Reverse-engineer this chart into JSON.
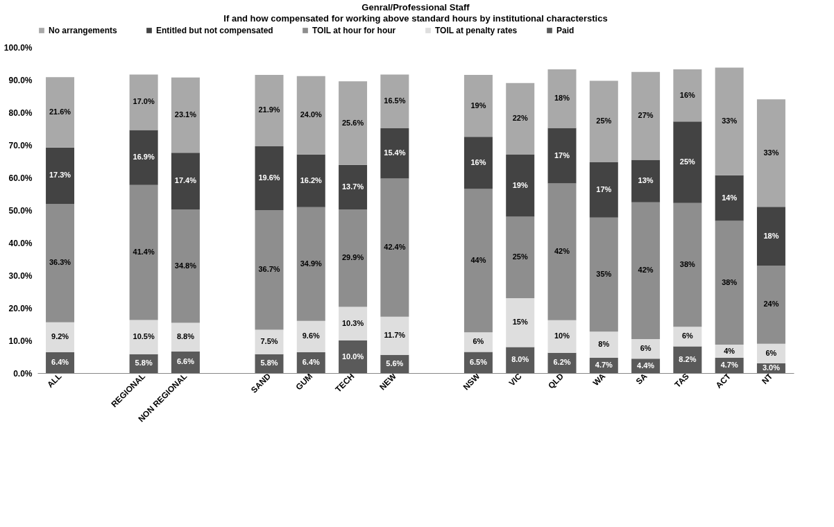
{
  "chart_data": {
    "type": "bar",
    "stacked": true,
    "title": "Genral/Professional Staff",
    "subtitle": "If and how compensated for working above standard hours by institutional characterstics",
    "categories": [
      "ALL",
      null,
      "REGIONAL",
      "NON REGIONAL",
      null,
      "SAND",
      "GUM",
      "TECH",
      "NEW",
      null,
      "NSW",
      "VIC",
      "QLD",
      "WA",
      "SA",
      "TAS",
      "ACT",
      "NT"
    ],
    "series": [
      {
        "name": "Paid",
        "color": "#5a5a5a",
        "values": [
          6.4,
          null,
          5.8,
          6.6,
          null,
          5.8,
          6.4,
          10.0,
          5.6,
          null,
          6.5,
          8.0,
          6.2,
          4.7,
          4.4,
          8.2,
          4.7,
          3.0
        ],
        "value_labels": [
          "6.4%",
          null,
          "5.8%",
          "6.6%",
          null,
          "5.8%",
          "6.4%",
          "10.0%",
          "5.6%",
          null,
          "6.5%",
          "8.0%",
          "6.2%",
          "4.7%",
          "4.4%",
          "8.2%",
          "4.7%",
          "3.0%"
        ]
      },
      {
        "name": "TOIL at penalty rates",
        "color": "#dedede",
        "values": [
          9.2,
          null,
          10.5,
          8.8,
          null,
          7.5,
          9.6,
          10.3,
          11.7,
          null,
          6,
          15,
          10,
          8,
          6,
          6,
          4,
          6
        ],
        "value_labels": [
          "9.2%",
          null,
          "10.5%",
          "8.8%",
          null,
          "7.5%",
          "9.6%",
          "10.3%",
          "11.7%",
          null,
          "6%",
          "15%",
          "10%",
          "8%",
          "6%",
          "6%",
          "4%",
          "6%"
        ]
      },
      {
        "name": "TOIL at hour for hour",
        "color": "#8e8e8e",
        "values": [
          36.3,
          null,
          41.4,
          34.8,
          null,
          36.7,
          34.9,
          29.9,
          42.4,
          null,
          44,
          25,
          42,
          35,
          42,
          38,
          38,
          24
        ],
        "value_labels": [
          "36.3%",
          null,
          "41.4%",
          "34.8%",
          null,
          "36.7%",
          "34.9%",
          "29.9%",
          "42.4%",
          null,
          "44%",
          "25%",
          "42%",
          "35%",
          "42%",
          "38%",
          "38%",
          "24%"
        ]
      },
      {
        "name": "Entitled but not compensated",
        "color": "#434343",
        "values": [
          17.3,
          null,
          16.9,
          17.4,
          null,
          19.6,
          16.2,
          13.7,
          15.4,
          null,
          16,
          19,
          17,
          17,
          13,
          25,
          14,
          18
        ],
        "value_labels": [
          "17.3%",
          null,
          "16.9%",
          "17.4%",
          null,
          "19.6%",
          "16.2%",
          "13.7%",
          "15.4%",
          null,
          "16%",
          "19%",
          "17%",
          "17%",
          "13%",
          "25%",
          "14%",
          "18%"
        ]
      },
      {
        "name": "No arrangements",
        "color": "#a9a9a9",
        "values": [
          21.6,
          null,
          17.0,
          23.1,
          null,
          21.9,
          24.0,
          25.6,
          16.5,
          null,
          19,
          22,
          18,
          25,
          27,
          16,
          33,
          33
        ],
        "value_labels": [
          "21.6%",
          null,
          "17.0%",
          "23.1%",
          null,
          "21.9%",
          "24.0%",
          "25.6%",
          "16.5%",
          null,
          "19%",
          "22%",
          "18%",
          "25%",
          "27%",
          "16%",
          "33%",
          "33%"
        ]
      }
    ],
    "ylim": [
      0,
      100
    ],
    "yticks": [
      {
        "value": 0,
        "label": "0.0%"
      },
      {
        "value": 10,
        "label": "10.0%"
      },
      {
        "value": 20,
        "label": "20.0%"
      },
      {
        "value": 30,
        "label": "30.0%"
      },
      {
        "value": 40,
        "label": "40.0%"
      },
      {
        "value": 50,
        "label": "50.0%"
      },
      {
        "value": 60,
        "label": "60.0%"
      },
      {
        "value": 70,
        "label": "70.0%"
      },
      {
        "value": 80,
        "label": "80.0%"
      },
      {
        "value": 90,
        "label": "90.0%"
      },
      {
        "value": 100,
        "label": "100.0%"
      }
    ],
    "grid": false,
    "legend": "top"
  }
}
